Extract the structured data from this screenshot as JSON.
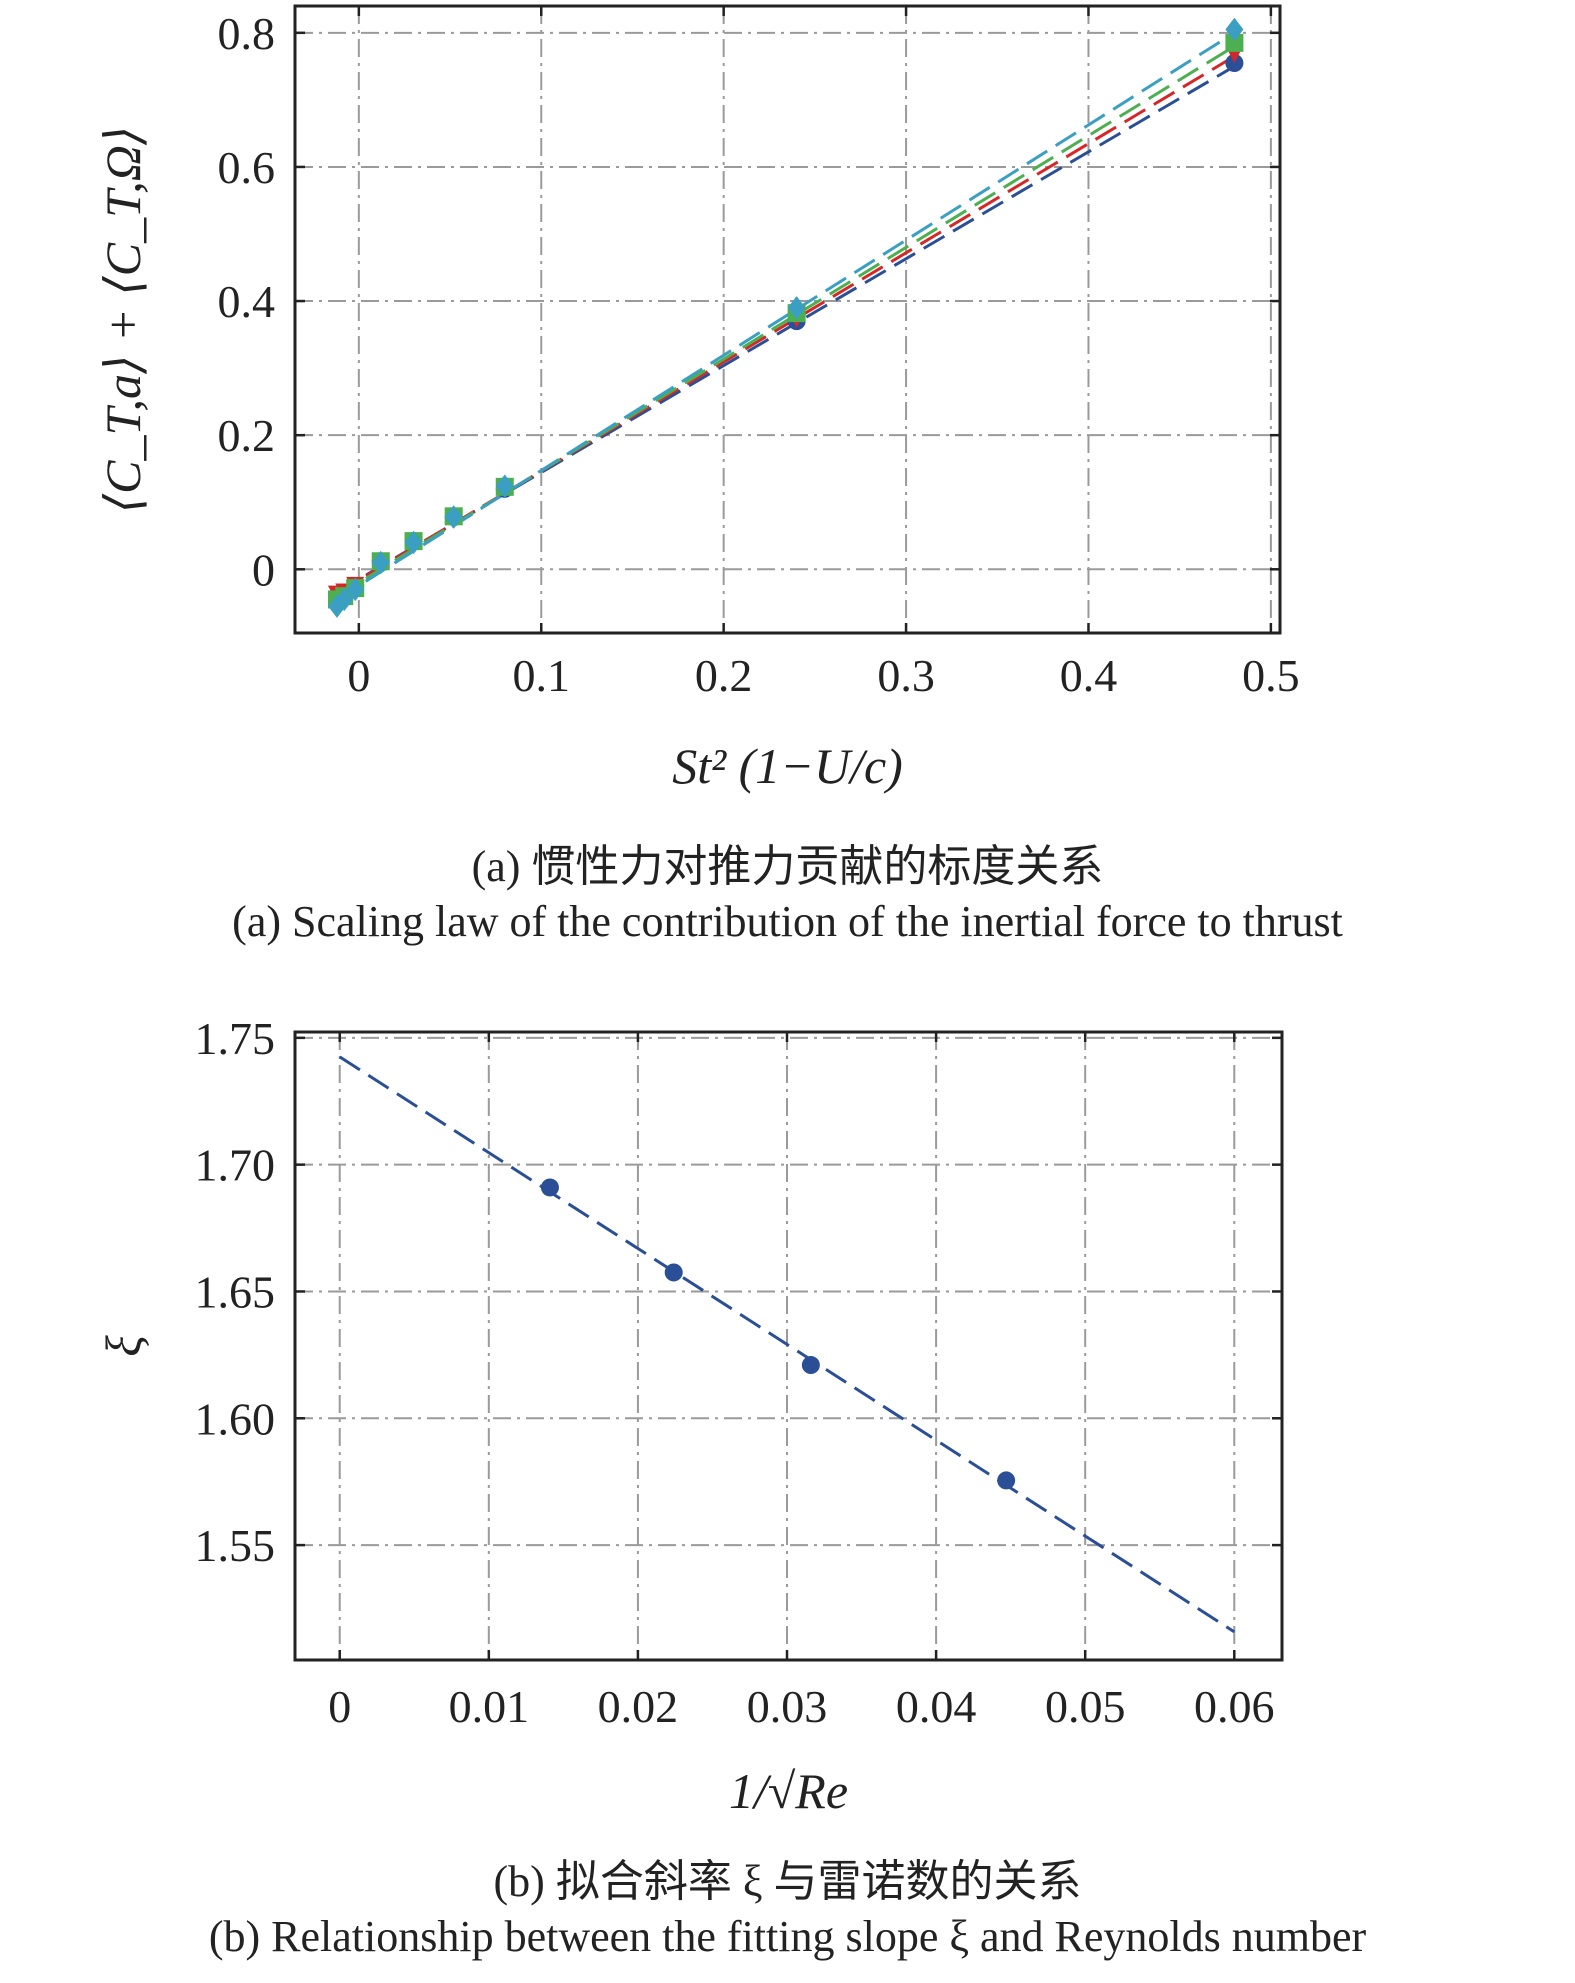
{
  "chart_data": [
    {
      "type": "scatter",
      "xlabel": "St² (1−U/c)",
      "ylabel": "⟨C_T,a⟩ + ⟨C_T,Ω⟩",
      "xlim": [
        -0.035,
        0.505
      ],
      "ylim": [
        -0.095,
        0.84
      ],
      "x_ticks": [
        0,
        0.1,
        0.2,
        0.3,
        0.4,
        0.5
      ],
      "x_tick_labels": [
        "0",
        "0.1",
        "0.2",
        "0.3",
        "0.4",
        "0.5"
      ],
      "y_ticks": [
        0,
        0.2,
        0.4,
        0.6,
        0.8
      ],
      "y_tick_labels": [
        "0",
        "0.2",
        "0.4",
        "0.6",
        "0.8"
      ],
      "grid": true,
      "grid_style": "dash-dot",
      "series": [
        {
          "color": "#2b4f96",
          "marker": "circle",
          "x": [
            -0.012,
            -0.008,
            -0.002,
            0.012,
            0.03,
            0.052,
            0.08,
            0.24,
            0.48
          ],
          "y": [
            -0.04,
            -0.035,
            -0.025,
            0.012,
            0.042,
            0.078,
            0.12,
            0.37,
            0.755
          ],
          "fit": {
            "x": [
              -0.012,
              0.48
            ],
            "y": [
              -0.034,
              0.75
            ]
          }
        },
        {
          "color": "#d62728",
          "marker": "triangle-down",
          "x": [
            -0.012,
            -0.008,
            -0.002,
            0.012,
            0.03,
            0.052,
            0.08,
            0.24,
            0.48
          ],
          "y": [
            -0.035,
            -0.032,
            -0.022,
            0.013,
            0.043,
            0.08,
            0.122,
            0.375,
            0.77
          ],
          "fit": {
            "x": [
              -0.012,
              0.48
            ],
            "y": [
              -0.036,
              0.765
            ]
          }
        },
        {
          "color": "#4caf50",
          "marker": "square",
          "x": [
            -0.012,
            -0.008,
            -0.002,
            0.012,
            0.03,
            0.052,
            0.08,
            0.24,
            0.48
          ],
          "y": [
            -0.045,
            -0.04,
            -0.028,
            0.012,
            0.042,
            0.079,
            0.123,
            0.382,
            0.785
          ],
          "fit": {
            "x": [
              -0.012,
              0.48
            ],
            "y": [
              -0.04,
              0.78
            ]
          }
        },
        {
          "color": "#3a9fc2",
          "marker": "diamond",
          "x": [
            -0.012,
            -0.008,
            -0.002,
            0.012,
            0.03,
            0.052,
            0.08,
            0.24,
            0.48
          ],
          "y": [
            -0.055,
            -0.045,
            -0.03,
            0.01,
            0.04,
            0.078,
            0.124,
            0.39,
            0.805
          ],
          "fit": {
            "x": [
              -0.012,
              0.48
            ],
            "y": [
              -0.045,
              0.8
            ]
          }
        }
      ]
    },
    {
      "type": "scatter",
      "xlabel": "1/√Re",
      "ylabel": "ξ",
      "xlim": [
        -0.003,
        0.0632
      ],
      "ylim": [
        1.5047,
        1.7523
      ],
      "x_ticks": [
        0,
        0.01,
        0.02,
        0.03,
        0.04,
        0.05,
        0.06
      ],
      "x_tick_labels": [
        "0",
        "0.01",
        "0.02",
        "0.03",
        "0.04",
        "0.05",
        "0.06"
      ],
      "y_ticks": [
        1.55,
        1.6,
        1.65,
        1.7,
        1.75
      ],
      "y_tick_labels": [
        "1.55",
        "1.60",
        "1.65",
        "1.70",
        "1.75"
      ],
      "grid": true,
      "grid_style": "dash-dot",
      "series": [
        {
          "color": "#2b4f96",
          "marker": "circle",
          "x": [
            0.0141,
            0.0224,
            0.0316,
            0.0447
          ],
          "y": [
            1.691,
            1.6575,
            1.621,
            1.5755
          ],
          "fit": {
            "x": [
              0,
              0.06
            ],
            "y": [
              1.7425,
              1.5158
            ]
          }
        }
      ]
    }
  ],
  "captions": {
    "a_zh": "(a) 惯性力对推力贡献的标度关系",
    "a_en": "(a) Scaling law of the contribution of the inertial force to thrust",
    "b_zh": "(b) 拟合斜率 ξ 与雷诺数的关系",
    "b_en": "(b) Relationship between the fitting slope ξ and Reynolds number"
  }
}
